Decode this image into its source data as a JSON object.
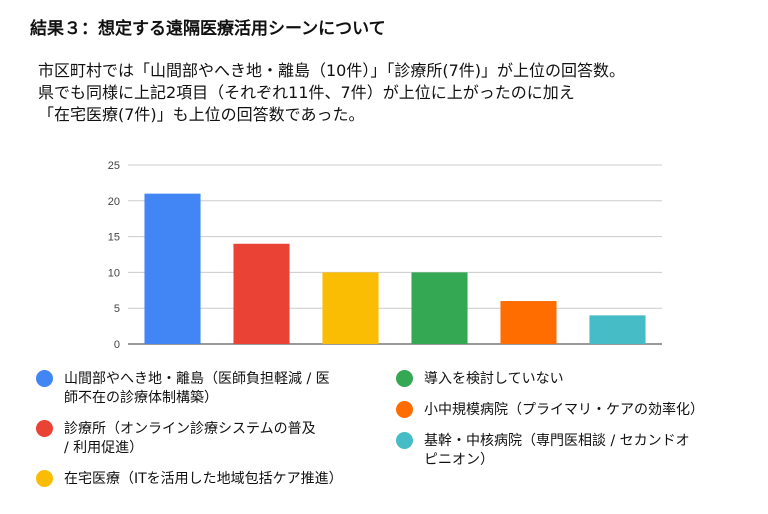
{
  "heading": "結果３：想定する遠隔医療活用シーンについて",
  "body_lines": [
    "市区町村では「山間部やへき地・離島（10件）」「診療所(7件)」が上位の回答数。",
    "県でも同様に上記2項目（それぞれ11件、7件）が上位に上がったのに加え",
    "「在宅医療(7件)」も上位の回答数であった。"
  ],
  "chart_data": {
    "type": "bar",
    "categories": [
      "山間部やへき地・離島（医師負担軽減 / 医\n師不在の診療体制構築）",
      "診療所（オンライン診療システムの普及\n/ 利用促進）",
      "在宅医療（ITを活用した地域包括ケア推進）",
      "導入を検討していない",
      "小中規模病院（プライマリ・ケアの効率化）",
      "基幹・中核病院（専門医相談 / セカンドオ\nピニオン）"
    ],
    "values": [
      21,
      14,
      10,
      10,
      6,
      4
    ],
    "colors": [
      "#4285f4",
      "#ea4335",
      "#fbbc04",
      "#34a853",
      "#ff6d01",
      "#46bdc6"
    ],
    "ylim": [
      0,
      25
    ],
    "yticks": [
      "0",
      "5",
      "10",
      "15",
      "20",
      "25"
    ],
    "grid": true,
    "xlabel": "",
    "ylabel": "",
    "legend_position": "bottom"
  }
}
